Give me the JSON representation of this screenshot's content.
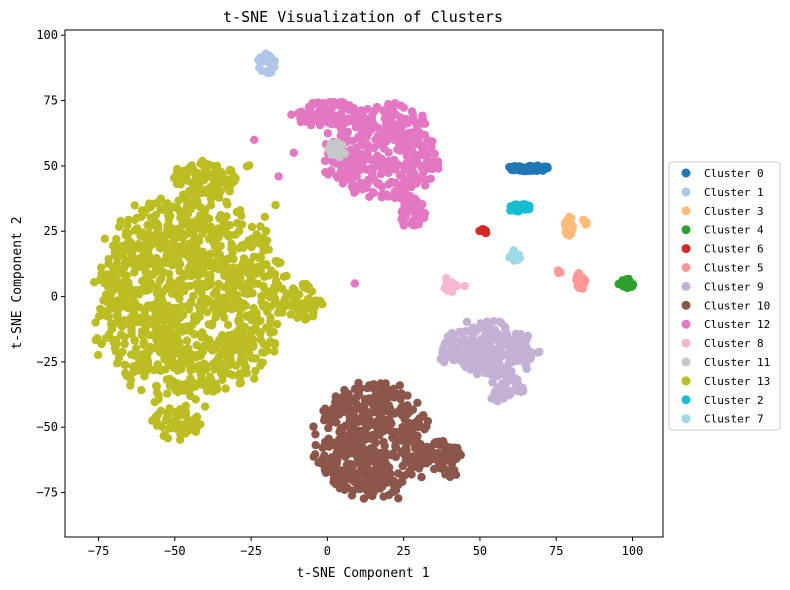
{
  "chart_data": {
    "type": "scatter",
    "title": "t-SNE Visualization of Clusters",
    "xlabel": "t-SNE Component 1",
    "ylabel": "t-SNE Component 2",
    "xlim": [
      -86,
      110
    ],
    "ylim": [
      -92,
      102
    ],
    "xticks": [
      -75,
      -50,
      -25,
      0,
      25,
      50,
      75,
      100
    ],
    "yticks": [
      -75,
      -50,
      -25,
      0,
      25,
      50,
      75,
      100
    ],
    "grid": false,
    "legend_position": "right, outside plot",
    "series": [
      {
        "name": "Cluster 0",
        "color": "#1f77b4",
        "blobs": [
          {
            "cx": 66,
            "cy": 49,
            "rx": 7,
            "ry": 1.2,
            "n": 60
          }
        ]
      },
      {
        "name": "Cluster 1",
        "color": "#aec7e8",
        "blobs": [
          {
            "cx": -20,
            "cy": 89,
            "rx": 3,
            "ry": 4,
            "n": 30
          }
        ]
      },
      {
        "name": "Cluster 3",
        "color": "#ffbb78",
        "blobs": [
          {
            "cx": 79,
            "cy": 27,
            "rx": 1.5,
            "ry": 4,
            "n": 20
          },
          {
            "cx": 84.5,
            "cy": 29,
            "rx": 1,
            "ry": 1.5,
            "n": 6
          }
        ]
      },
      {
        "name": "Cluster 4",
        "color": "#2ca02c",
        "blobs": [
          {
            "cx": 98,
            "cy": 5,
            "rx": 2.5,
            "ry": 2,
            "n": 18
          }
        ]
      },
      {
        "name": "Cluster 6",
        "color": "#d62728",
        "blobs": [
          {
            "cx": 51,
            "cy": 25,
            "rx": 1.2,
            "ry": 1.2,
            "n": 10
          }
        ]
      },
      {
        "name": "Cluster 5",
        "color": "#ff9896",
        "blobs": [
          {
            "cx": 83,
            "cy": 6,
            "rx": 2,
            "ry": 3,
            "n": 14
          },
          {
            "cx": 76,
            "cy": 9,
            "rx": 1,
            "ry": 1,
            "n": 4
          }
        ]
      },
      {
        "name": "Cluster 9",
        "color": "#c5b0d5",
        "blobs": [
          {
            "cx": 53,
            "cy": -20,
            "rx": 15,
            "ry": 10,
            "n": 260
          },
          {
            "cx": 58,
            "cy": -35,
            "rx": 6,
            "ry": 6,
            "n": 40
          }
        ]
      },
      {
        "name": "Cluster 10",
        "color": "#8c564b",
        "blobs": [
          {
            "cx": 15,
            "cy": -55,
            "rx": 18,
            "ry": 22,
            "n": 500
          },
          {
            "cx": 38,
            "cy": -62,
            "rx": 6,
            "ry": 7,
            "n": 60
          }
        ]
      },
      {
        "name": "Cluster 12",
        "color": "#e377c2",
        "blobs": [
          {
            "cx": 18,
            "cy": 55,
            "rx": 18,
            "ry": 18,
            "n": 380
          },
          {
            "cx": 0,
            "cy": 70,
            "rx": 10,
            "ry": 5,
            "n": 80
          },
          {
            "cx": 28,
            "cy": 32,
            "rx": 4,
            "ry": 6,
            "n": 40
          },
          {
            "cx": -24,
            "cy": 60,
            "rx": 0.5,
            "ry": 0.5,
            "n": 1
          },
          {
            "cx": -11,
            "cy": 55,
            "rx": 0.5,
            "ry": 0.5,
            "n": 1
          },
          {
            "cx": -16,
            "cy": 46,
            "rx": 0.5,
            "ry": 0.5,
            "n": 1
          },
          {
            "cx": 9,
            "cy": 5,
            "rx": 0.5,
            "ry": 0.5,
            "n": 1
          }
        ]
      },
      {
        "name": "Cluster 8",
        "color": "#f7b6d2",
        "blobs": [
          {
            "cx": 40,
            "cy": 4,
            "rx": 2.5,
            "ry": 3,
            "n": 14
          },
          {
            "cx": 45,
            "cy": 4,
            "rx": 0.5,
            "ry": 0.5,
            "n": 1
          }
        ]
      },
      {
        "name": "Cluster 11",
        "color": "#c7c7c7",
        "blobs": [
          {
            "cx": 3,
            "cy": 56,
            "rx": 3,
            "ry": 3,
            "n": 30
          }
        ]
      },
      {
        "name": "Cluster 13",
        "color": "#bcbd22",
        "blobs": [
          {
            "cx": -45,
            "cy": 0,
            "rx": 30,
            "ry": 38,
            "n": 1100
          },
          {
            "cx": -40,
            "cy": 45,
            "rx": 10,
            "ry": 7,
            "n": 100
          },
          {
            "cx": -50,
            "cy": -48,
            "rx": 8,
            "ry": 6,
            "n": 60
          },
          {
            "cx": -8,
            "cy": -2,
            "rx": 6,
            "ry": 7,
            "n": 50
          },
          {
            "cx": -26,
            "cy": 50,
            "rx": 1,
            "ry": 1,
            "n": 2
          },
          {
            "cx": -17,
            "cy": 35,
            "rx": 0.5,
            "ry": 0.5,
            "n": 1
          }
        ]
      },
      {
        "name": "Cluster 2",
        "color": "#17becf",
        "blobs": [
          {
            "cx": 63,
            "cy": 34,
            "rx": 4,
            "ry": 1.5,
            "n": 30
          }
        ]
      },
      {
        "name": "Cluster 7",
        "color": "#9edae5",
        "blobs": [
          {
            "cx": 61.5,
            "cy": 16,
            "rx": 2,
            "ry": 2.5,
            "n": 14
          }
        ]
      }
    ]
  }
}
